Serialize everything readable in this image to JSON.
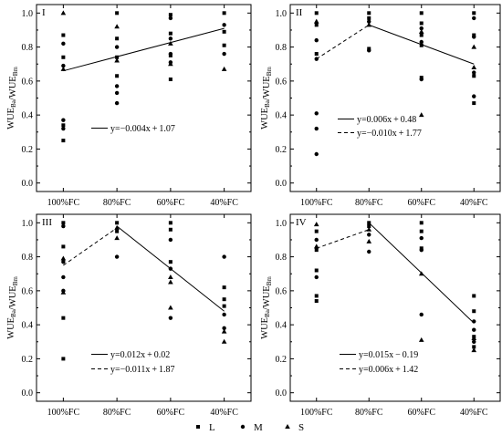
{
  "figure": {
    "legend": [
      {
        "symbol": "square",
        "label": "L"
      },
      {
        "symbol": "circle",
        "label": "M"
      },
      {
        "symbol": "triangle",
        "label": "S"
      }
    ]
  },
  "chart_data": [
    {
      "type": "scatter",
      "panel_label": "I",
      "categories": [
        "100%FC",
        "80%FC",
        "60%FC",
        "40%FC"
      ],
      "xlabel": "",
      "ylabel": "WUE_Ba/WUE_Bm",
      "ylim": [
        -0.05,
        1.05
      ],
      "yticks": [
        "0.0",
        "0.2",
        "0.4",
        "0.6",
        "0.8",
        "1.0"
      ],
      "series": [
        {
          "name": "L",
          "marker": "square",
          "points": [
            {
              "x": 1,
              "y": 0.87
            },
            {
              "x": 1,
              "y": 0.74
            },
            {
              "x": 1,
              "y": 0.34
            },
            {
              "x": 1,
              "y": 0.25
            },
            {
              "x": 2,
              "y": 1.0
            },
            {
              "x": 2,
              "y": 0.85
            },
            {
              "x": 2,
              "y": 0.74
            },
            {
              "x": 2,
              "y": 0.63
            },
            {
              "x": 3,
              "y": 0.99
            },
            {
              "x": 3,
              "y": 0.88
            },
            {
              "x": 3,
              "y": 0.75
            },
            {
              "x": 3,
              "y": 0.61
            },
            {
              "x": 4,
              "y": 1.0
            },
            {
              "x": 4,
              "y": 0.89
            },
            {
              "x": 4,
              "y": 0.81
            }
          ]
        },
        {
          "name": "M",
          "marker": "circle",
          "points": [
            {
              "x": 1,
              "y": 0.82
            },
            {
              "x": 1,
              "y": 0.69
            },
            {
              "x": 1,
              "y": 0.37
            },
            {
              "x": 1,
              "y": 0.32
            },
            {
              "x": 2,
              "y": 0.8
            },
            {
              "x": 2,
              "y": 0.57
            },
            {
              "x": 2,
              "y": 0.53
            },
            {
              "x": 2,
              "y": 0.47
            },
            {
              "x": 3,
              "y": 0.97
            },
            {
              "x": 3,
              "y": 0.85
            },
            {
              "x": 3,
              "y": 0.76
            },
            {
              "x": 3,
              "y": 0.71
            },
            {
              "x": 4,
              "y": 0.93
            },
            {
              "x": 4,
              "y": 0.76
            }
          ]
        },
        {
          "name": "S",
          "marker": "triangle",
          "points": [
            {
              "x": 1,
              "y": 1.0
            },
            {
              "x": 1,
              "y": 0.67
            },
            {
              "x": 2,
              "y": 0.92
            },
            {
              "x": 2,
              "y": 0.72
            },
            {
              "x": 3,
              "y": 0.82
            },
            {
              "x": 3,
              "y": 0.7
            },
            {
              "x": 4,
              "y": 0.67
            }
          ]
        }
      ],
      "fit_lines": [
        {
          "label": "y=−0.004x + 1.07",
          "style": "solid",
          "points": [
            {
              "x": 1,
              "y": 0.66
            },
            {
              "x": 4,
              "y": 0.91
            }
          ]
        }
      ]
    },
    {
      "type": "scatter",
      "panel_label": "II",
      "categories": [
        "100%FC",
        "80%FC",
        "60%FC",
        "40%FC"
      ],
      "xlabel": "",
      "ylabel": "WUE_Ba/WUE_Bm",
      "ylim": [
        -0.05,
        1.05
      ],
      "yticks": [
        "0.0",
        "0.2",
        "0.4",
        "0.6",
        "0.8",
        "1.0"
      ],
      "series": [
        {
          "name": "L",
          "marker": "square",
          "points": [
            {
              "x": 1,
              "y": 1.0
            },
            {
              "x": 1,
              "y": 0.93
            },
            {
              "x": 1,
              "y": 0.76
            },
            {
              "x": 2,
              "y": 1.0
            },
            {
              "x": 2,
              "y": 0.97
            },
            {
              "x": 2,
              "y": 0.79
            },
            {
              "x": 3,
              "y": 1.0
            },
            {
              "x": 3,
              "y": 0.94
            },
            {
              "x": 3,
              "y": 0.87
            },
            {
              "x": 3,
              "y": 0.81
            },
            {
              "x": 3,
              "y": 0.62
            },
            {
              "x": 4,
              "y": 1.0
            },
            {
              "x": 4,
              "y": 0.87
            },
            {
              "x": 4,
              "y": 0.63
            },
            {
              "x": 4,
              "y": 0.47
            }
          ]
        },
        {
          "name": "M",
          "marker": "circle",
          "points": [
            {
              "x": 1,
              "y": 0.84
            },
            {
              "x": 1,
              "y": 0.73
            },
            {
              "x": 1,
              "y": 0.41
            },
            {
              "x": 1,
              "y": 0.32
            },
            {
              "x": 1,
              "y": 0.17
            },
            {
              "x": 2,
              "y": 0.95
            },
            {
              "x": 2,
              "y": 0.78
            },
            {
              "x": 3,
              "y": 0.91
            },
            {
              "x": 3,
              "y": 0.83
            },
            {
              "x": 3,
              "y": 0.61
            },
            {
              "x": 4,
              "y": 0.97
            },
            {
              "x": 4,
              "y": 0.86
            },
            {
              "x": 4,
              "y": 0.65
            },
            {
              "x": 4,
              "y": 0.51
            }
          ]
        },
        {
          "name": "S",
          "marker": "triangle",
          "points": [
            {
              "x": 1,
              "y": 0.95
            },
            {
              "x": 2,
              "y": 0.93
            },
            {
              "x": 3,
              "y": 0.89
            },
            {
              "x": 3,
              "y": 0.4
            },
            {
              "x": 4,
              "y": 0.8
            },
            {
              "x": 4,
              "y": 0.68
            }
          ]
        }
      ],
      "fit_lines": [
        {
          "label": "y=0.006x + 0.48",
          "style": "solid",
          "points": [
            {
              "x": 2,
              "y": 0.93
            },
            {
              "x": 4,
              "y": 0.7
            }
          ]
        },
        {
          "label": "y=−0.010x + 1.77",
          "style": "dashed",
          "points": [
            {
              "x": 1,
              "y": 0.73
            },
            {
              "x": 2,
              "y": 0.93
            }
          ]
        }
      ]
    },
    {
      "type": "scatter",
      "panel_label": "III",
      "categories": [
        "100%FC",
        "80%FC",
        "60%FC",
        "40%FC"
      ],
      "xlabel": "",
      "ylabel": "WUE_Ba/WUE_Bm",
      "ylim": [
        -0.05,
        1.05
      ],
      "yticks": [
        "0.0",
        "0.2",
        "0.4",
        "0.6",
        "0.8",
        "1.0"
      ],
      "series": [
        {
          "name": "L",
          "marker": "square",
          "points": [
            {
              "x": 1,
              "y": 1.0
            },
            {
              "x": 1,
              "y": 0.86
            },
            {
              "x": 1,
              "y": 0.44
            },
            {
              "x": 1,
              "y": 0.2
            },
            {
              "x": 2,
              "y": 1.0
            },
            {
              "x": 2,
              "y": 0.95
            },
            {
              "x": 3,
              "y": 1.0
            },
            {
              "x": 3,
              "y": 0.96
            },
            {
              "x": 3,
              "y": 0.77
            },
            {
              "x": 4,
              "y": 0.62
            },
            {
              "x": 4,
              "y": 0.55
            },
            {
              "x": 4,
              "y": 0.51
            }
          ]
        },
        {
          "name": "M",
          "marker": "circle",
          "points": [
            {
              "x": 1,
              "y": 0.98
            },
            {
              "x": 1,
              "y": 0.77
            },
            {
              "x": 1,
              "y": 0.68
            },
            {
              "x": 1,
              "y": 0.6
            },
            {
              "x": 2,
              "y": 0.8
            },
            {
              "x": 3,
              "y": 0.9
            },
            {
              "x": 3,
              "y": 0.73
            },
            {
              "x": 3,
              "y": 0.44
            },
            {
              "x": 4,
              "y": 0.8
            },
            {
              "x": 4,
              "y": 0.46
            },
            {
              "x": 4,
              "y": 0.38
            }
          ]
        },
        {
          "name": "S",
          "marker": "triangle",
          "points": [
            {
              "x": 1,
              "y": 0.79
            },
            {
              "x": 1,
              "y": 0.59
            },
            {
              "x": 2,
              "y": 0.97
            },
            {
              "x": 2,
              "y": 0.91
            },
            {
              "x": 3,
              "y": 0.68
            },
            {
              "x": 3,
              "y": 0.65
            },
            {
              "x": 3,
              "y": 0.5
            },
            {
              "x": 4,
              "y": 0.36
            },
            {
              "x": 4,
              "y": 0.3
            }
          ]
        }
      ],
      "fit_lines": [
        {
          "label": "y=0.012x + 0.02",
          "style": "solid",
          "points": [
            {
              "x": 2,
              "y": 0.98
            },
            {
              "x": 4,
              "y": 0.48
            }
          ]
        },
        {
          "label": "y=−0.011x + 1.87",
          "style": "dashed",
          "points": [
            {
              "x": 1,
              "y": 0.75
            },
            {
              "x": 2,
              "y": 0.97
            }
          ]
        }
      ]
    },
    {
      "type": "scatter",
      "panel_label": "IV",
      "categories": [
        "100%FC",
        "80%FC",
        "60%FC",
        "40%FC"
      ],
      "xlabel": "",
      "ylabel": "WUE_Ba/WUE_Bm",
      "ylim": [
        -0.05,
        1.05
      ],
      "yticks": [
        "0.0",
        "0.2",
        "0.4",
        "0.6",
        "0.8",
        "1.0"
      ],
      "series": [
        {
          "name": "L",
          "marker": "square",
          "points": [
            {
              "x": 1,
              "y": 0.95
            },
            {
              "x": 1,
              "y": 0.84
            },
            {
              "x": 1,
              "y": 0.72
            },
            {
              "x": 1,
              "y": 0.57
            },
            {
              "x": 1,
              "y": 0.54
            },
            {
              "x": 2,
              "y": 1.0
            },
            {
              "x": 2,
              "y": 0.98
            },
            {
              "x": 3,
              "y": 1.0
            },
            {
              "x": 3,
              "y": 0.95
            },
            {
              "x": 3,
              "y": 0.85
            },
            {
              "x": 4,
              "y": 0.57
            },
            {
              "x": 4,
              "y": 0.48
            },
            {
              "x": 4,
              "y": 0.33
            },
            {
              "x": 4,
              "y": 0.27
            }
          ]
        },
        {
          "name": "M",
          "marker": "circle",
          "points": [
            {
              "x": 1,
              "y": 0.9
            },
            {
              "x": 1,
              "y": 0.68
            },
            {
              "x": 2,
              "y": 0.93
            },
            {
              "x": 2,
              "y": 0.83
            },
            {
              "x": 3,
              "y": 0.91
            },
            {
              "x": 3,
              "y": 0.84
            },
            {
              "x": 3,
              "y": 0.46
            },
            {
              "x": 4,
              "y": 0.42
            },
            {
              "x": 4,
              "y": 0.37
            },
            {
              "x": 4,
              "y": 0.3
            }
          ]
        },
        {
          "name": "S",
          "marker": "triangle",
          "points": [
            {
              "x": 1,
              "y": 0.99
            },
            {
              "x": 1,
              "y": 0.86
            },
            {
              "x": 2,
              "y": 0.96
            },
            {
              "x": 2,
              "y": 0.89
            },
            {
              "x": 3,
              "y": 0.7
            },
            {
              "x": 3,
              "y": 0.31
            },
            {
              "x": 4,
              "y": 0.32
            },
            {
              "x": 4,
              "y": 0.25
            }
          ]
        }
      ],
      "fit_lines": [
        {
          "label": "y=0.015x − 0.19",
          "style": "solid",
          "points": [
            {
              "x": 2,
              "y": 1.0
            },
            {
              "x": 4,
              "y": 0.41
            }
          ]
        },
        {
          "label": "y=0.006x + 1.42",
          "style": "dashed",
          "points": [
            {
              "x": 1,
              "y": 0.85
            },
            {
              "x": 2,
              "y": 0.96
            }
          ]
        }
      ]
    }
  ]
}
